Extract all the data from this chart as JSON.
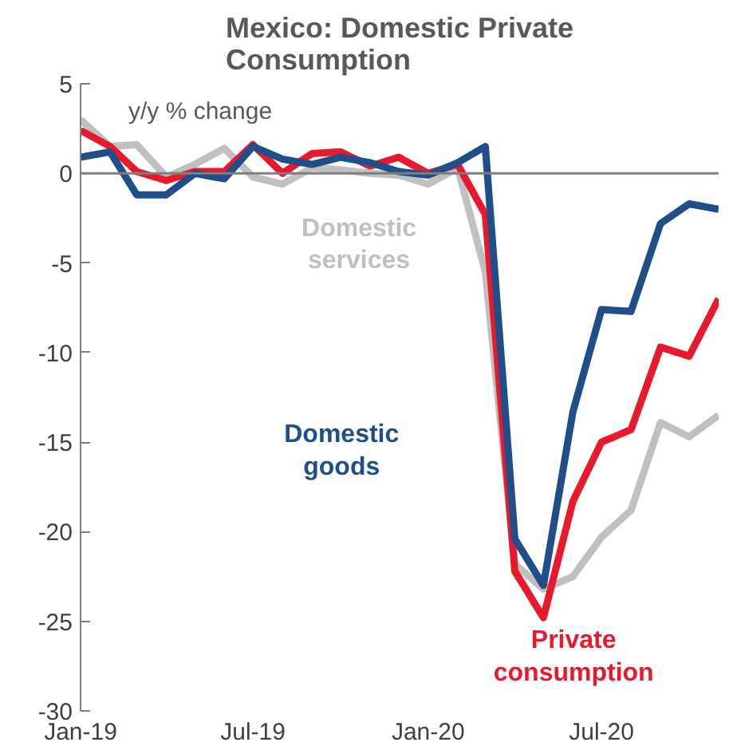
{
  "chart_data": {
    "type": "line",
    "title": "Mexico: Domestic Private Consumption",
    "ylabel": "y/y % change",
    "x": [
      "2019-01",
      "2019-02",
      "2019-03",
      "2019-04",
      "2019-05",
      "2019-06",
      "2019-07",
      "2019-08",
      "2019-09",
      "2019-10",
      "2019-11",
      "2019-12",
      "2020-01",
      "2020-02",
      "2020-03",
      "2020-04",
      "2020-05",
      "2020-06",
      "2020-07",
      "2020-08",
      "2020-09",
      "2020-10",
      "2020-11"
    ],
    "series": [
      {
        "name": "Domestic services",
        "color": "#c0c0c0",
        "values": [
          3.0,
          1.5,
          1.6,
          -0.2,
          0.5,
          1.4,
          -0.2,
          -0.6,
          0.3,
          0.2,
          0.0,
          -0.1,
          -0.6,
          0.3,
          -5.5,
          -21.8,
          -23.2,
          -22.5,
          -20.3,
          -18.8,
          -13.9,
          -14.7,
          -13.5
        ]
      },
      {
        "name": "Private consumption",
        "color": "#e8192c",
        "values": [
          2.4,
          1.5,
          0.1,
          -0.4,
          0.1,
          0.1,
          1.6,
          0.0,
          1.1,
          1.2,
          0.4,
          0.9,
          0.0,
          0.5,
          -2.3,
          -22.2,
          -24.8,
          -18.3,
          -15.0,
          -14.3,
          -9.7,
          -10.2,
          -7.0
        ]
      },
      {
        "name": "Domestic goods",
        "color": "#1f4e88",
        "values": [
          0.9,
          1.2,
          -1.2,
          -1.2,
          0.0,
          -0.3,
          1.5,
          0.8,
          0.5,
          0.9,
          0.6,
          0.1,
          -0.1,
          0.6,
          1.5,
          -20.4,
          -23.0,
          -13.3,
          -7.6,
          -7.7,
          -2.8,
          -1.7,
          -2.0
        ]
      }
    ],
    "xlim": [
      "2019-01",
      "2020-11"
    ],
    "xticks": [
      {
        "value": "2019-01",
        "label": "Jan-19"
      },
      {
        "value": "2019-07",
        "label": "Jul-19"
      },
      {
        "value": "2020-01",
        "label": "Jan-20"
      },
      {
        "value": "2020-07",
        "label": "Jul-20"
      }
    ],
    "ylim": [
      -30,
      5
    ],
    "yticks": [
      -30,
      -25,
      -20,
      -15,
      -10,
      -5,
      0,
      5
    ],
    "ref_lines": [
      {
        "axis": "y",
        "value": 0,
        "label": null,
        "color": "#7f7f7f"
      }
    ],
    "grid": false,
    "legend": false,
    "marker": "none",
    "line_style": "solid"
  }
}
